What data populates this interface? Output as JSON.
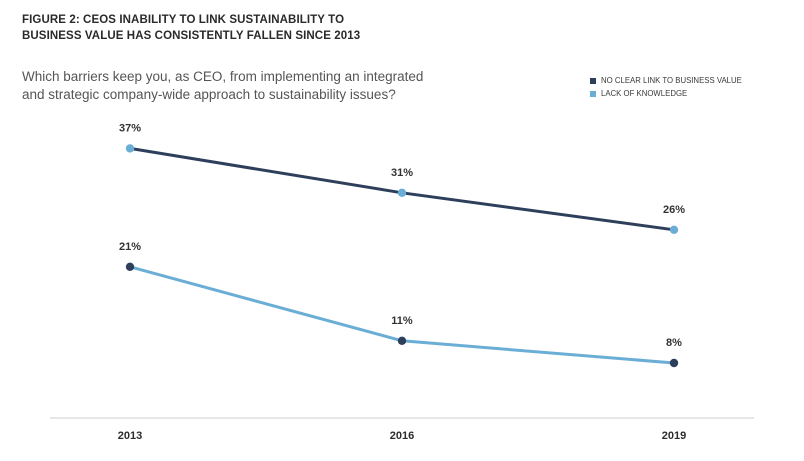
{
  "figure": {
    "title_line1": "FIGURE 2:  CEOS INABILITY TO LINK SUSTAINABILITY TO",
    "title_line2": "BUSINESS VALUE HAS CONSISTENTLY FALLEN SINCE 2013",
    "question_line1": "Which barriers keep you, as CEO, from implementing an integrated",
    "question_line2": "and strategic company-wide approach to sustainability issues?"
  },
  "chart_data": {
    "type": "line",
    "title": "FIGURE 2:  CEOS INABILITY TO LINK SUSTAINABILITY TO BUSINESS VALUE HAS CONSISTENTLY FALLEN SINCE 2013",
    "categories": [
      "2013",
      "2016",
      "2019"
    ],
    "series": [
      {
        "name": "NO CLEAR LINK TO BUSINESS VALUE",
        "values": [
          37,
          31,
          26
        ],
        "labels": [
          "37%",
          "31%",
          "26%"
        ],
        "line_color": "#2e3f5c",
        "marker_color": "#6aaed6"
      },
      {
        "name": "LACK OF KNOWLEDGE",
        "values": [
          21,
          11,
          8
        ],
        "labels": [
          "21%",
          "11%",
          "8%"
        ],
        "line_color": "#6aaed6",
        "marker_color": "#2e3f5c"
      }
    ],
    "xlabel": "",
    "ylabel": "",
    "unit": "%",
    "grid": false,
    "legend_position": "top-right"
  }
}
